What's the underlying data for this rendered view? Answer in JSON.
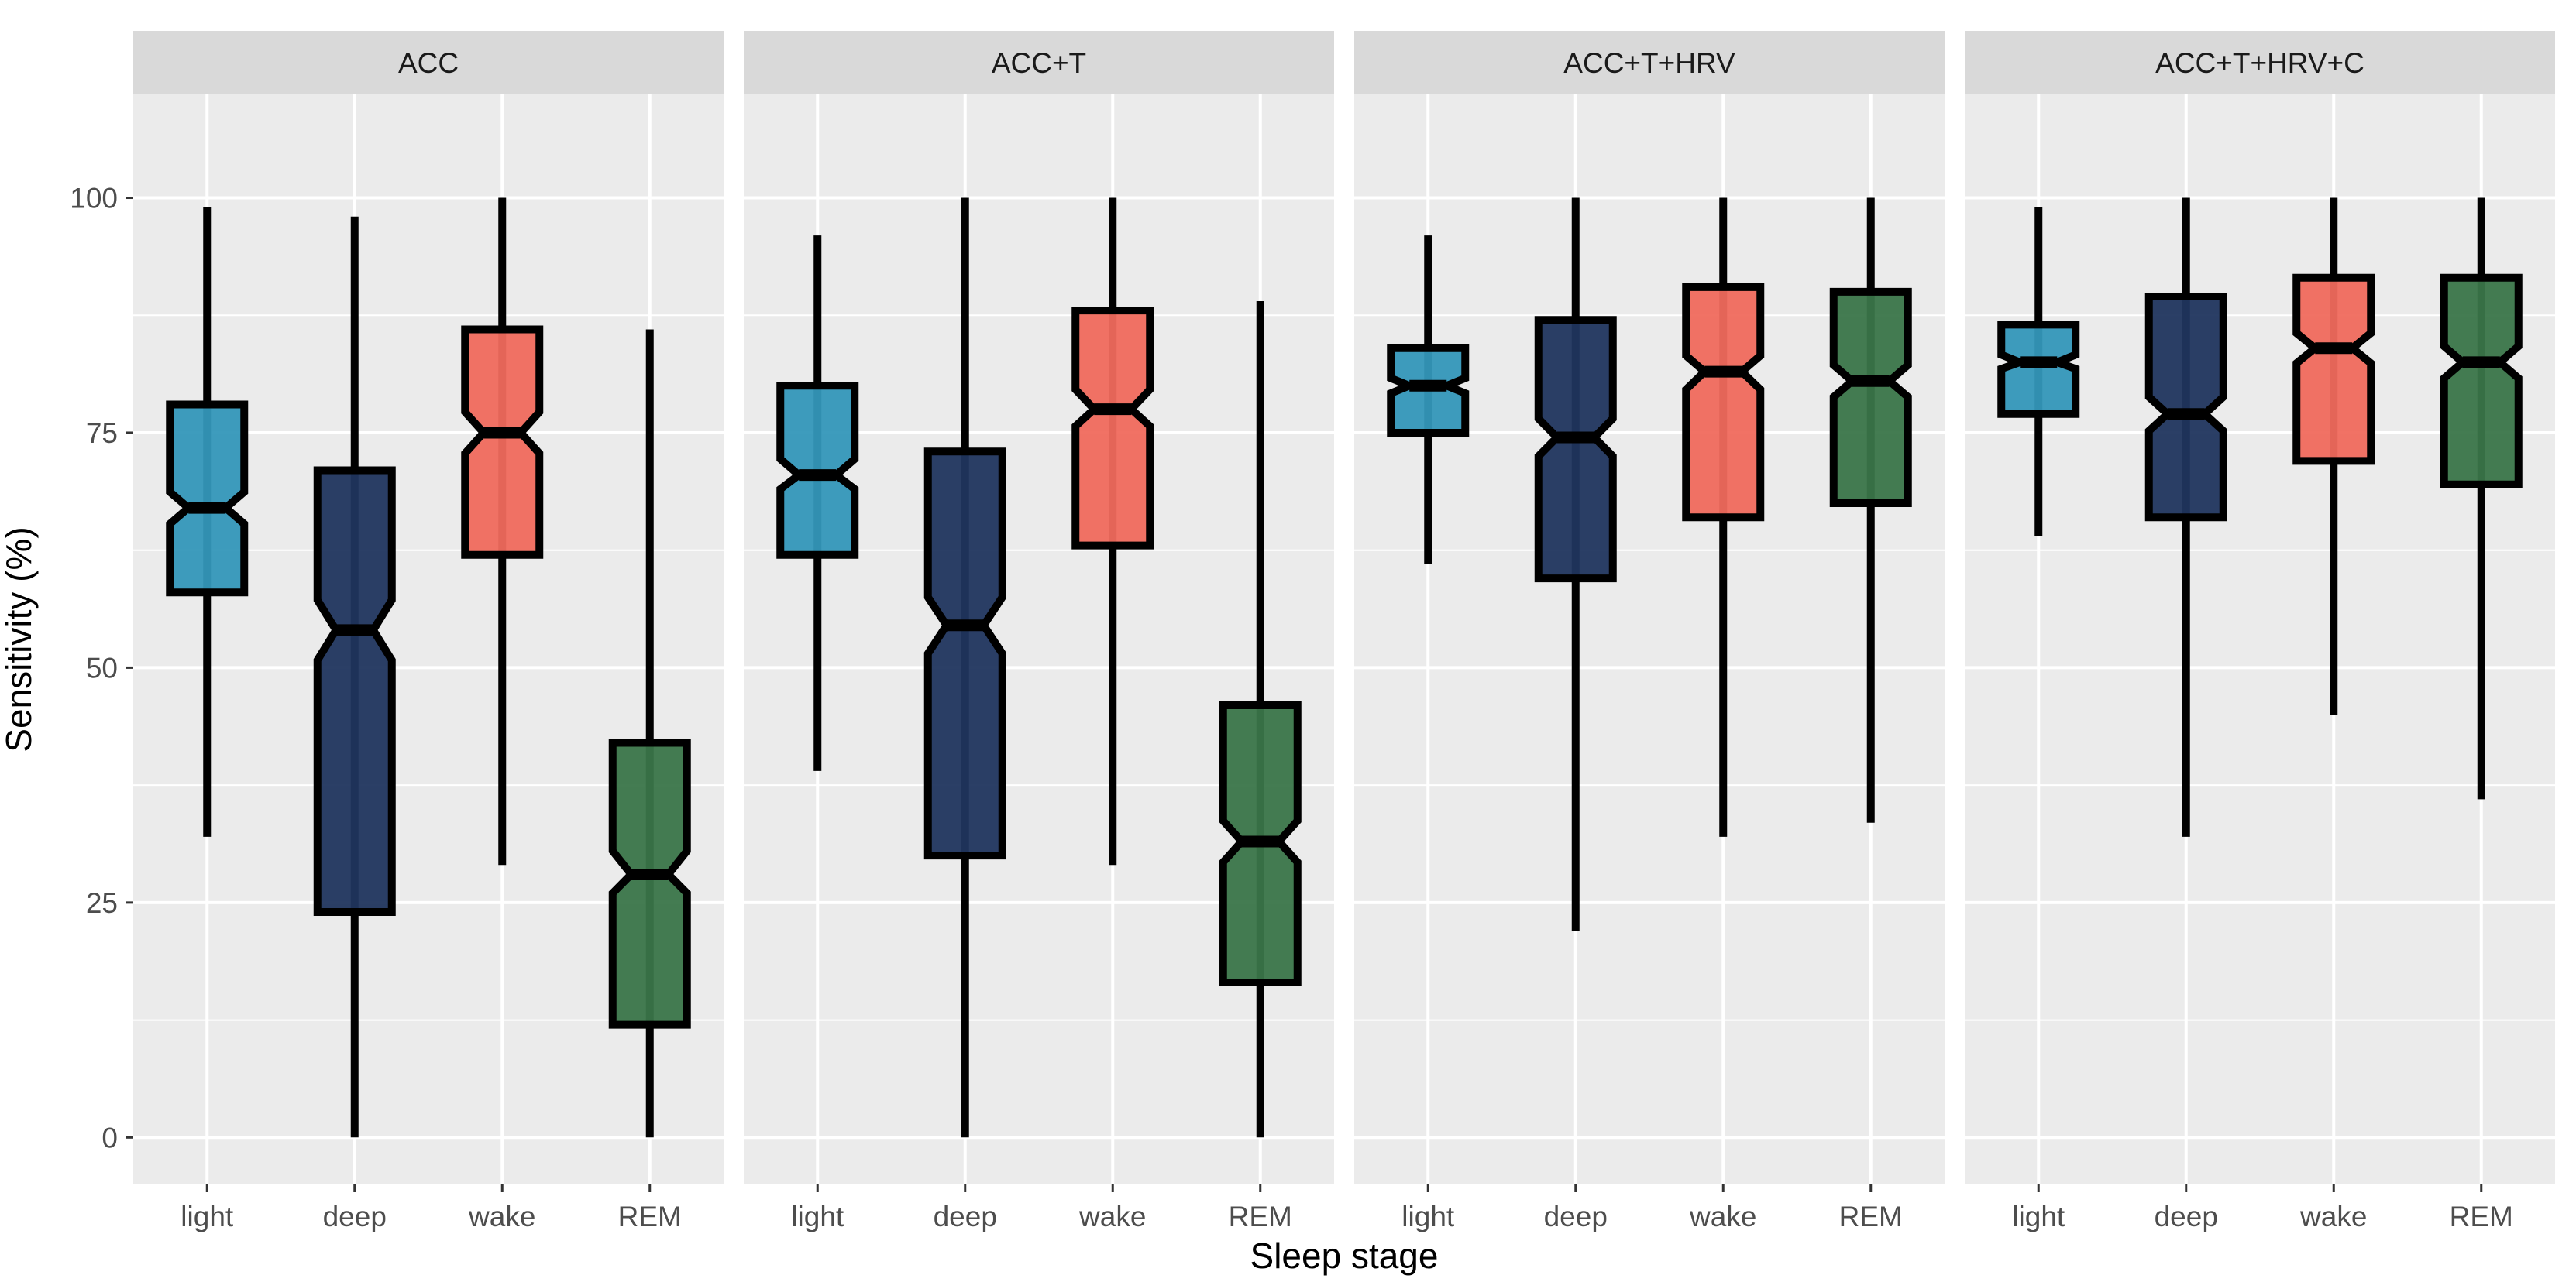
{
  "chart_data": {
    "type": "boxplot",
    "notched": true,
    "facet_by": "feature set",
    "facets": [
      "ACC",
      "ACC+T",
      "ACC+T+HRV",
      "ACC+T+HRV+C"
    ],
    "categories": [
      "light",
      "deep",
      "wake",
      "REM"
    ],
    "xlabel": "Sleep stage",
    "ylabel": "Sensitivity (%)",
    "ylim": [
      -5,
      111
    ],
    "yticks": [
      0,
      25,
      50,
      75,
      100
    ],
    "grid": true,
    "colors": {
      "light": "#3497b9",
      "deep": "#20355e",
      "wake": "#f06a5d",
      "REM": "#3a7549",
      "panel_bg": "#ebebeb",
      "strip_bg": "#d9d9d9",
      "grid_major": "#ffffff"
    },
    "panels": [
      {
        "facet": "ACC",
        "boxes": [
          {
            "stage": "light",
            "min": 32,
            "q1": 58,
            "median": 67,
            "q3": 78,
            "max": 99,
            "notch": [
              65.3,
              68.7
            ]
          },
          {
            "stage": "deep",
            "min": 0,
            "q1": 24,
            "median": 54,
            "q3": 71,
            "max": 98,
            "notch": [
              50.8,
              57.2
            ]
          },
          {
            "stage": "wake",
            "min": 29,
            "q1": 62,
            "median": 75,
            "q3": 86,
            "max": 100,
            "notch": [
              72.8,
              77.2
            ]
          },
          {
            "stage": "REM",
            "min": 0,
            "q1": 12,
            "median": 28,
            "q3": 42,
            "max": 86,
            "notch": [
              26,
              30.5
            ]
          }
        ]
      },
      {
        "facet": "ACC+T",
        "boxes": [
          {
            "stage": "light",
            "min": 39,
            "q1": 62,
            "median": 70.5,
            "q3": 80,
            "max": 96,
            "notch": [
              69,
              72.2
            ]
          },
          {
            "stage": "deep",
            "min": 0,
            "q1": 30,
            "median": 54.5,
            "q3": 73,
            "max": 100,
            "notch": [
              51.5,
              57.5
            ]
          },
          {
            "stage": "wake",
            "min": 29,
            "q1": 63,
            "median": 77.5,
            "q3": 88,
            "max": 100,
            "notch": [
              75.7,
              79.6
            ]
          },
          {
            "stage": "REM",
            "min": 0,
            "q1": 16.5,
            "median": 31.5,
            "q3": 46,
            "max": 89,
            "notch": [
              29.3,
              33.7
            ]
          }
        ]
      },
      {
        "facet": "ACC+T+HRV",
        "boxes": [
          {
            "stage": "light",
            "min": 61,
            "q1": 75,
            "median": 80,
            "q3": 84,
            "max": 96,
            "notch": [
              79.2,
              80.8
            ]
          },
          {
            "stage": "deep",
            "min": 22,
            "q1": 59.5,
            "median": 74.5,
            "q3": 87,
            "max": 100,
            "notch": [
              72.5,
              76.5
            ]
          },
          {
            "stage": "wake",
            "min": 32,
            "q1": 66,
            "median": 81.5,
            "q3": 90.5,
            "max": 100,
            "notch": [
              79.6,
              83.2
            ]
          },
          {
            "stage": "REM",
            "min": 33.5,
            "q1": 67.5,
            "median": 80.5,
            "q3": 90,
            "max": 100,
            "notch": [
              78.8,
              82.2
            ]
          }
        ]
      },
      {
        "facet": "ACC+T+HRV+C",
        "boxes": [
          {
            "stage": "light",
            "min": 64,
            "q1": 77,
            "median": 82.5,
            "q3": 86.5,
            "max": 99,
            "notch": [
              81.8,
              83.3
            ]
          },
          {
            "stage": "deep",
            "min": 32,
            "q1": 66,
            "median": 77,
            "q3": 89.5,
            "max": 100,
            "notch": [
              75.2,
              78.8
            ]
          },
          {
            "stage": "wake",
            "min": 45,
            "q1": 72,
            "median": 84,
            "q3": 91.5,
            "max": 100,
            "notch": [
              82.4,
              85.6
            ]
          },
          {
            "stage": "REM",
            "min": 36,
            "q1": 69.5,
            "median": 82.5,
            "q3": 91.5,
            "max": 100,
            "notch": [
              80.8,
              84.2
            ]
          }
        ]
      }
    ]
  }
}
